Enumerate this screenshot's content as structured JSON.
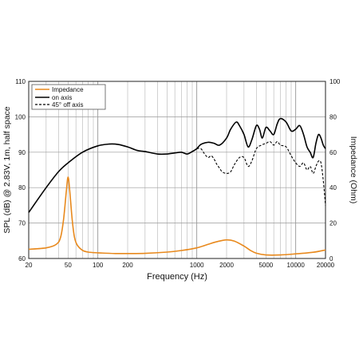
{
  "chart_data": {
    "type": "line",
    "xscale": "log",
    "xlim": [
      20,
      20000
    ],
    "xlabel": "Frequency (Hz)",
    "x_ticks": [
      20,
      50,
      100,
      200,
      1000,
      2000,
      5000,
      10000,
      20000
    ],
    "ylabel_left": "SPL (dB) @ 2.83V, 1m, half space",
    "ylim_left": [
      60,
      110
    ],
    "yticks_left": [
      60,
      70,
      80,
      90,
      100,
      110
    ],
    "ylabel_right": "Impedance (Ohm)",
    "ylim_right": [
      0,
      100
    ],
    "yticks_right": [
      0,
      20,
      40,
      60,
      80,
      100
    ],
    "grid": true,
    "legend_position": "top-left",
    "series": [
      {
        "name": "Impedance",
        "axis": "right",
        "color": "#e8891d",
        "dash": "solid",
        "points": [
          [
            20,
            5.2
          ],
          [
            30,
            6.0
          ],
          [
            38,
            8.0
          ],
          [
            42,
            12.0
          ],
          [
            45,
            22.0
          ],
          [
            48,
            38.0
          ],
          [
            50,
            46.0
          ],
          [
            52,
            38.0
          ],
          [
            55,
            22.0
          ],
          [
            58,
            12.0
          ],
          [
            62,
            7.5
          ],
          [
            70,
            4.6
          ],
          [
            80,
            3.6
          ],
          [
            100,
            3.2
          ],
          [
            150,
            2.8
          ],
          [
            200,
            2.8
          ],
          [
            300,
            2.9
          ],
          [
            500,
            3.6
          ],
          [
            700,
            4.5
          ],
          [
            1000,
            6.0
          ],
          [
            1300,
            8.0
          ],
          [
            1600,
            9.5
          ],
          [
            2000,
            10.5
          ],
          [
            2400,
            9.8
          ],
          [
            3000,
            7.0
          ],
          [
            3500,
            4.5
          ],
          [
            4000,
            3.0
          ],
          [
            5000,
            2.0
          ],
          [
            7000,
            2.0
          ],
          [
            10000,
            2.6
          ],
          [
            15000,
            3.5
          ],
          [
            20000,
            4.8
          ]
        ]
      },
      {
        "name": "on axis",
        "axis": "left",
        "color": "#000000",
        "dash": "solid",
        "points": [
          [
            20,
            73.0
          ],
          [
            30,
            80.0
          ],
          [
            40,
            84.5
          ],
          [
            50,
            87.0
          ],
          [
            70,
            90.0
          ],
          [
            100,
            91.8
          ],
          [
            130,
            92.3
          ],
          [
            160,
            92.2
          ],
          [
            200,
            91.5
          ],
          [
            250,
            90.5
          ],
          [
            300,
            90.2
          ],
          [
            400,
            89.5
          ],
          [
            500,
            89.5
          ],
          [
            600,
            89.8
          ],
          [
            700,
            90.0
          ],
          [
            800,
            89.5
          ],
          [
            900,
            90.2
          ],
          [
            1000,
            91.0
          ],
          [
            1100,
            92.2
          ],
          [
            1300,
            92.8
          ],
          [
            1500,
            92.5
          ],
          [
            1700,
            92.0
          ],
          [
            2000,
            94.0
          ],
          [
            2200,
            96.5
          ],
          [
            2500,
            98.5
          ],
          [
            2700,
            97.5
          ],
          [
            3000,
            95.0
          ],
          [
            3300,
            91.5
          ],
          [
            3600,
            93.5
          ],
          [
            4000,
            97.5
          ],
          [
            4300,
            96.5
          ],
          [
            4600,
            94.0
          ],
          [
            5000,
            97.0
          ],
          [
            5500,
            96.0
          ],
          [
            6000,
            95.0
          ],
          [
            6500,
            98.0
          ],
          [
            7000,
            99.5
          ],
          [
            8000,
            98.5
          ],
          [
            9000,
            96.0
          ],
          [
            10000,
            96.5
          ],
          [
            11000,
            97.5
          ],
          [
            12000,
            95.0
          ],
          [
            13000,
            91.5
          ],
          [
            14000,
            90.0
          ],
          [
            15000,
            88.5
          ],
          [
            16000,
            92.5
          ],
          [
            17000,
            95.0
          ],
          [
            18000,
            94.0
          ],
          [
            19000,
            92.0
          ],
          [
            20000,
            91.0
          ]
        ]
      },
      {
        "name": "45° off axis",
        "axis": "left",
        "color": "#000000",
        "dash": "dashed",
        "points": [
          [
            1000,
            91.0
          ],
          [
            1100,
            91.0
          ],
          [
            1200,
            89.5
          ],
          [
            1300,
            88.5
          ],
          [
            1400,
            89.0
          ],
          [
            1500,
            88.0
          ],
          [
            1600,
            86.5
          ],
          [
            1700,
            85.5
          ],
          [
            1800,
            84.5
          ],
          [
            2000,
            84.0
          ],
          [
            2200,
            84.5
          ],
          [
            2400,
            86.5
          ],
          [
            2700,
            88.5
          ],
          [
            3000,
            88.5
          ],
          [
            3300,
            86.0
          ],
          [
            3600,
            87.5
          ],
          [
            4000,
            91.0
          ],
          [
            4500,
            92.0
          ],
          [
            5000,
            92.5
          ],
          [
            5500,
            93.0
          ],
          [
            6000,
            92.0
          ],
          [
            6500,
            93.0
          ],
          [
            7000,
            92.0
          ],
          [
            8000,
            91.5
          ],
          [
            9000,
            89.0
          ],
          [
            10000,
            87.0
          ],
          [
            11000,
            86.0
          ],
          [
            12000,
            87.0
          ],
          [
            13000,
            85.0
          ],
          [
            14000,
            86.0
          ],
          [
            15000,
            84.0
          ],
          [
            16000,
            86.0
          ],
          [
            17000,
            87.5
          ],
          [
            18000,
            87.0
          ],
          [
            19000,
            82.0
          ],
          [
            20000,
            75.0
          ]
        ]
      }
    ]
  }
}
